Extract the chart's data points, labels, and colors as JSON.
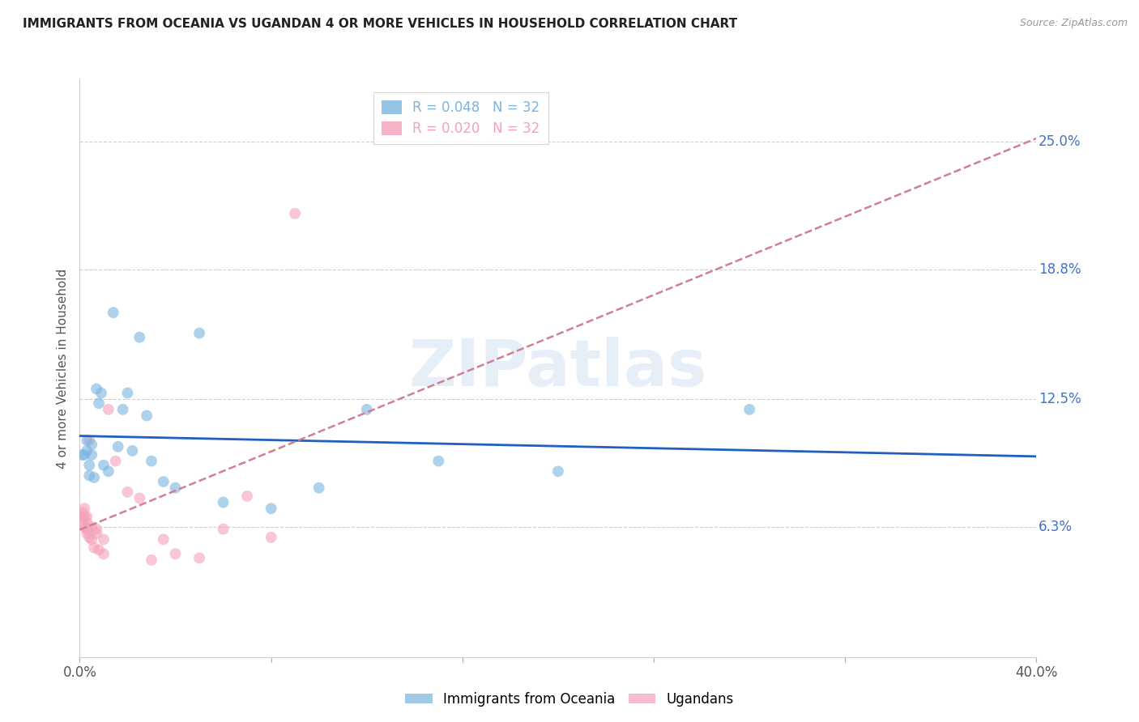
{
  "title": "IMMIGRANTS FROM OCEANIA VS UGANDAN 4 OR MORE VEHICLES IN HOUSEHOLD CORRELATION CHART",
  "source": "Source: ZipAtlas.com",
  "ylabel": "4 or more Vehicles in Household",
  "xlim": [
    0.0,
    0.4
  ],
  "ylim": [
    0.0,
    0.28
  ],
  "ytick_labels_right": [
    "25.0%",
    "18.8%",
    "12.5%",
    "6.3%"
  ],
  "ytick_vals_right": [
    0.25,
    0.188,
    0.125,
    0.063
  ],
  "watermark": "ZIPatlas",
  "legend_entries": [
    {
      "label": "R = 0.048   N = 32",
      "color": "#7ab4e0"
    },
    {
      "label": "R = 0.020   N = 32",
      "color": "#f4a0b8"
    }
  ],
  "series1_color": "#7ab4e0",
  "series2_color": "#f4a0b8",
  "trendline1_color": "#2060c0",
  "trendline2_color": "#d08090",
  "series1_x": [
    0.001,
    0.002,
    0.003,
    0.003,
    0.004,
    0.004,
    0.005,
    0.005,
    0.006,
    0.007,
    0.008,
    0.009,
    0.01,
    0.012,
    0.014,
    0.016,
    0.018,
    0.02,
    0.022,
    0.025,
    0.028,
    0.03,
    0.035,
    0.04,
    0.05,
    0.06,
    0.08,
    0.1,
    0.12,
    0.15,
    0.2,
    0.28
  ],
  "series1_y": [
    0.098,
    0.098,
    0.105,
    0.1,
    0.093,
    0.088,
    0.103,
    0.098,
    0.087,
    0.13,
    0.123,
    0.128,
    0.093,
    0.09,
    0.167,
    0.102,
    0.12,
    0.128,
    0.1,
    0.155,
    0.117,
    0.095,
    0.085,
    0.082,
    0.157,
    0.075,
    0.072,
    0.082,
    0.12,
    0.095,
    0.09,
    0.12
  ],
  "series2_x": [
    0.001,
    0.001,
    0.001,
    0.002,
    0.002,
    0.002,
    0.003,
    0.003,
    0.003,
    0.003,
    0.004,
    0.004,
    0.005,
    0.005,
    0.006,
    0.007,
    0.007,
    0.008,
    0.01,
    0.01,
    0.012,
    0.015,
    0.02,
    0.025,
    0.03,
    0.035,
    0.04,
    0.05,
    0.06,
    0.07,
    0.08,
    0.09
  ],
  "series2_y": [
    0.07,
    0.068,
    0.065,
    0.068,
    0.063,
    0.072,
    0.062,
    0.06,
    0.065,
    0.068,
    0.058,
    0.105,
    0.057,
    0.063,
    0.053,
    0.062,
    0.06,
    0.052,
    0.05,
    0.057,
    0.12,
    0.095,
    0.08,
    0.077,
    0.047,
    0.057,
    0.05,
    0.048,
    0.062,
    0.078,
    0.058,
    0.215
  ],
  "marker_size": 100,
  "marker_alpha": 0.6,
  "background_color": "#ffffff",
  "grid_color": "#d0d0d0",
  "title_color": "#222222",
  "axis_label_color": "#555555",
  "right_label_color": "#4472c4"
}
